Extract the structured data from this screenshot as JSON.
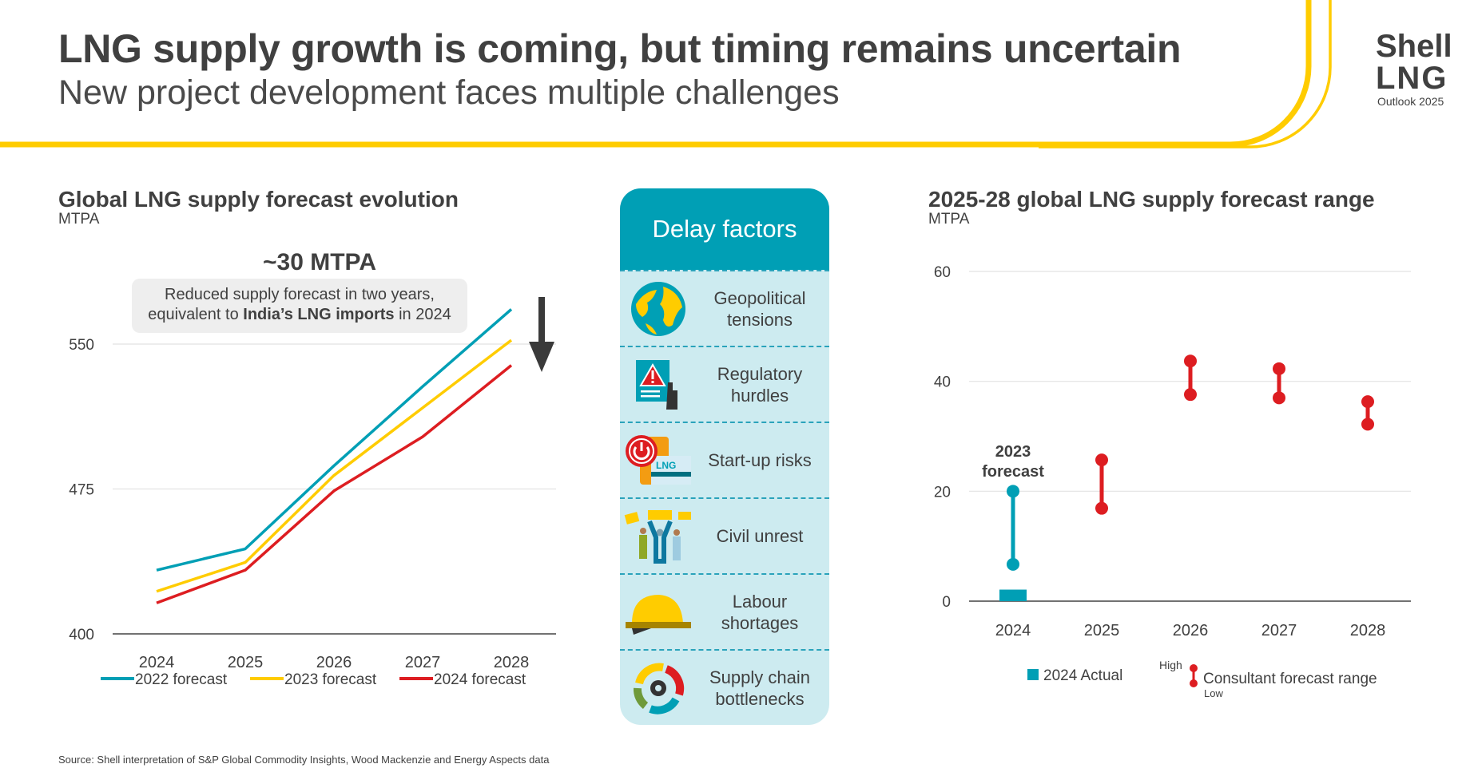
{
  "header": {
    "title": "LNG supply growth is coming, but timing remains uncertain",
    "subtitle": "New project development faces multiple challenges"
  },
  "logo": {
    "line1": "Shell",
    "line2": "LNG",
    "line3": "Outlook 2025"
  },
  "colors": {
    "teal": "#009fb5",
    "yellow": "#ffcc00",
    "red": "#dd1d21",
    "text": "#404040",
    "panel": "#cdebf0"
  },
  "annotation": {
    "headline": "~30 MTPA",
    "text_pre": "Reduced supply forecast in two years, equivalent to ",
    "text_bold": "India’s LNG imports",
    "text_post": " in 2024"
  },
  "delay_factors": {
    "title": "Delay factors",
    "items": [
      {
        "label": "Geopolitical tensions",
        "icon": "globe-icon"
      },
      {
        "label": "Regulatory hurdles",
        "icon": "warning-document-icon"
      },
      {
        "label": "Start-up risks",
        "icon": "power-button-icon"
      },
      {
        "label": "Civil unrest",
        "icon": "protesters-icon"
      },
      {
        "label": "Labour shortages",
        "icon": "hard-hat-icon"
      },
      {
        "label": "Supply chain bottlenecks",
        "icon": "cycle-gear-icon"
      }
    ]
  },
  "source": "Source: Shell interpretation of S&P Global Commodity Insights, Wood Mackenzie and Energy Aspects data",
  "chart_data": [
    {
      "type": "line",
      "title": "Global LNG supply forecast evolution",
      "ylabel": "MTPA",
      "categories": [
        "2024",
        "2025",
        "2026",
        "2027",
        "2028"
      ],
      "ylim": [
        400,
        575
      ],
      "yticks": [
        400,
        475,
        550
      ],
      "grid": true,
      "legend": "bottom",
      "series": [
        {
          "name": "2022 forecast",
          "color": "#009fb5",
          "values": [
            433,
            444,
            487,
            528,
            568
          ]
        },
        {
          "name": "2023 forecast",
          "color": "#ffcc00",
          "values": [
            422,
            437,
            482,
            517,
            552
          ]
        },
        {
          "name": "2024 forecast",
          "color": "#dd1d21",
          "values": [
            416,
            433,
            474,
            502,
            539
          ]
        }
      ]
    },
    {
      "type": "range",
      "title": "2025-28 global LNG supply forecast range",
      "ylabel": "MTPA",
      "categories": [
        "2024",
        "2025",
        "2026",
        "2027",
        "2028"
      ],
      "ylim": [
        0,
        60
      ],
      "yticks": [
        0,
        20,
        40,
        60
      ],
      "grid": true,
      "legend": "bottom",
      "actual": {
        "name": "2024 Actual",
        "category": "2024",
        "value": 2.1,
        "color": "#009fb5"
      },
      "forecast_2023": {
        "label_line1": "2023",
        "label_line2": "forecast",
        "category": "2024",
        "low": 6.7,
        "high": 20,
        "color": "#009fb5"
      },
      "ranges": {
        "name": "Consultant forecast range",
        "high_label": "High",
        "low_label": "Low",
        "color": "#dd1d21",
        "values": [
          {
            "category": "2025",
            "low": 16.9,
            "high": 25.7
          },
          {
            "category": "2026",
            "low": 37.6,
            "high": 43.7
          },
          {
            "category": "2027",
            "low": 37.0,
            "high": 42.3
          },
          {
            "category": "2028",
            "low": 32.2,
            "high": 36.3
          }
        ]
      }
    }
  ]
}
